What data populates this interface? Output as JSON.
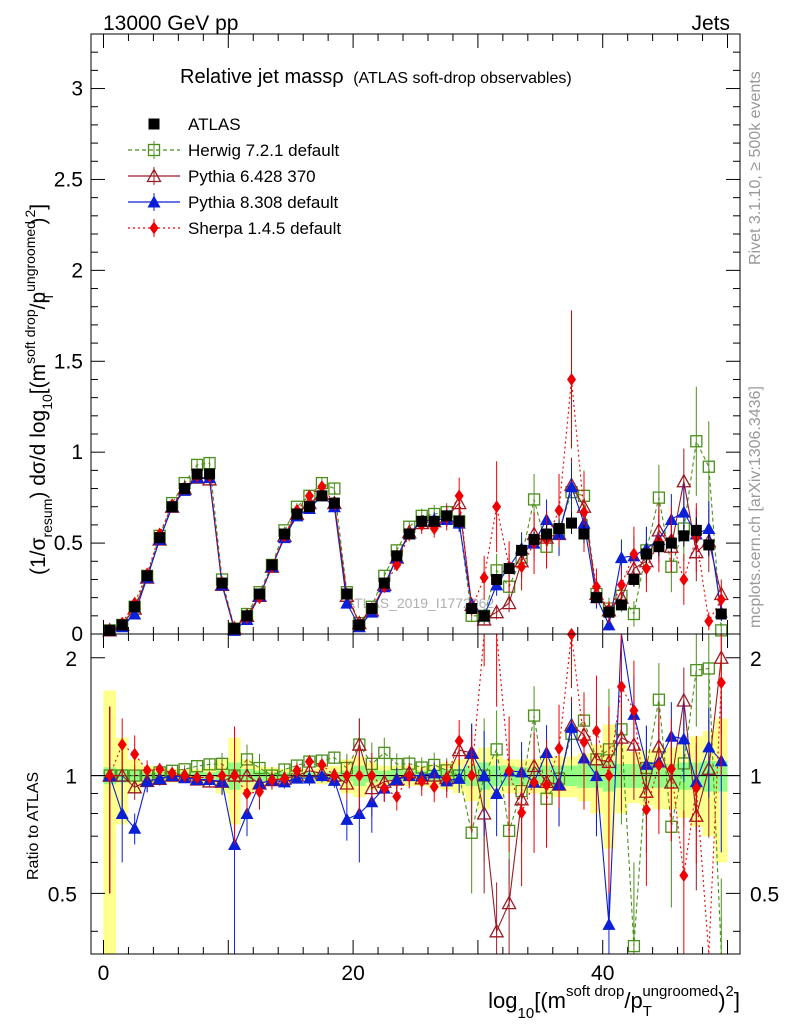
{
  "header": {
    "left": "13000 GeV pp",
    "right": "Jets"
  },
  "side_text": {
    "rivet": "Rivet 3.1.10, ≥ 500k events",
    "mcplots": "mcplots.cern.ch [arXiv:1306.3436]"
  },
  "chart_data": [
    {
      "type": "line",
      "title": "Relative jet massρ",
      "subtitle": "(ATLAS soft-drop observables)",
      "watermark": "ATLAS_2019_I1772062",
      "ylabel": {
        "pre": "(1/σ",
        "sub1": "resum",
        "mid": ") dσ/d log",
        "sub2": "10",
        "post": "[(m",
        "sup1": "soft drop",
        "post2": "/p",
        "sup2": "ungroomed",
        "subT": "T",
        "post3": ")",
        "sup3": "2",
        "post4": "]"
      },
      "xlim": [
        -1,
        51
      ],
      "ylim": [
        0,
        3.3
      ],
      "yticks": [
        0,
        0.5,
        1,
        1.5,
        2,
        2.5,
        3
      ],
      "ytick_labels": [
        "0",
        "0.5",
        "1",
        "1.5",
        "2",
        "2.5",
        "3"
      ],
      "x": [
        0.5,
        1.5,
        2.5,
        3.5,
        4.5,
        5.5,
        6.5,
        7.5,
        8.5,
        9.5,
        10.5,
        11.5,
        12.5,
        13.5,
        14.5,
        15.5,
        16.5,
        17.5,
        18.5,
        19.5,
        20.5,
        21.5,
        22.5,
        23.5,
        24.5,
        25.5,
        26.5,
        27.5,
        28.5,
        29.5,
        30.5,
        31.5,
        32.5,
        33.5,
        34.5,
        35.5,
        36.5,
        37.5,
        38.5,
        39.5,
        40.5,
        41.5,
        42.5,
        43.5,
        44.5,
        45.5,
        46.5,
        47.5,
        48.5,
        49.5
      ],
      "series": [
        {
          "name": "ATLAS",
          "color": "#000000",
          "marker": "square-filled",
          "dash": "",
          "values": [
            0.02,
            0.05,
            0.15,
            0.32,
            0.53,
            0.7,
            0.8,
            0.88,
            0.88,
            0.28,
            0.03,
            0.1,
            0.22,
            0.38,
            0.55,
            0.66,
            0.7,
            0.76,
            0.72,
            0.22,
            0.05,
            0.14,
            0.28,
            0.43,
            0.55,
            0.62,
            0.62,
            0.65,
            0.62,
            0.14,
            0.1,
            0.3,
            0.36,
            0.46,
            0.52,
            0.55,
            0.58,
            0.61,
            0.55,
            0.2,
            0.12,
            0.16,
            0.3,
            0.44,
            0.48,
            0.5,
            0.54,
            0.57,
            0.49,
            0.11
          ],
          "errors": [
            0.01,
            0.01,
            0.02,
            0.02,
            0.02,
            0.02,
            0.02,
            0.03,
            0.03,
            0.02,
            0.01,
            0.01,
            0.02,
            0.02,
            0.02,
            0.02,
            0.02,
            0.03,
            0.03,
            0.02,
            0.01,
            0.02,
            0.02,
            0.02,
            0.03,
            0.03,
            0.03,
            0.03,
            0.04,
            0.02,
            0.02,
            0.03,
            0.03,
            0.04,
            0.04,
            0.05,
            0.05,
            0.06,
            0.05,
            0.03,
            0.02,
            0.03,
            0.04,
            0.05,
            0.05,
            0.05,
            0.06,
            0.07,
            0.06,
            0.02
          ]
        },
        {
          "name": "Herwig 7.2.1 default",
          "color": "#4b8f1b",
          "marker": "square-open",
          "dash": "4,3",
          "values": [
            0.02,
            0.05,
            0.15,
            0.32,
            0.54,
            0.72,
            0.83,
            0.93,
            0.94,
            0.3,
            0.03,
            0.11,
            0.23,
            0.38,
            0.57,
            0.7,
            0.76,
            0.83,
            0.8,
            0.23,
            0.06,
            0.15,
            0.32,
            0.46,
            0.59,
            0.65,
            0.66,
            0.67,
            0.62,
            0.1,
            0.1,
            0.35,
            0.26,
            0.42,
            0.74,
            0.48,
            0.57,
            0.78,
            0.76,
            0.22,
            0.14,
            0.21,
            0.11,
            0.46,
            0.75,
            0.37,
            0.58,
            1.06,
            0.92,
            0.02
          ],
          "errors": [
            0.01,
            0.01,
            0.01,
            0.02,
            0.02,
            0.02,
            0.02,
            0.03,
            0.03,
            0.02,
            0.01,
            0.01,
            0.02,
            0.02,
            0.02,
            0.02,
            0.03,
            0.03,
            0.03,
            0.02,
            0.01,
            0.02,
            0.03,
            0.03,
            0.03,
            0.04,
            0.05,
            0.05,
            0.05,
            0.03,
            0.04,
            0.09,
            0.07,
            0.11,
            0.14,
            0.12,
            0.13,
            0.15,
            0.14,
            0.08,
            0.06,
            0.09,
            0.07,
            0.13,
            0.18,
            0.14,
            0.18,
            0.3,
            0.25,
            0.04
          ]
        },
        {
          "name": "Pythia 6.428 370",
          "color": "#9a1a24",
          "marker": "triangle-open",
          "dash": "",
          "values": [
            0.02,
            0.05,
            0.14,
            0.31,
            0.52,
            0.7,
            0.8,
            0.86,
            0.85,
            0.27,
            0.03,
            0.1,
            0.21,
            0.37,
            0.54,
            0.66,
            0.72,
            0.77,
            0.72,
            0.21,
            0.06,
            0.13,
            0.27,
            0.42,
            0.56,
            0.61,
            0.62,
            0.64,
            0.72,
            0.16,
            0.08,
            0.12,
            0.17,
            0.4,
            0.55,
            0.53,
            0.55,
            0.82,
            0.7,
            0.22,
            0.13,
            0.2,
            0.36,
            0.4,
            0.57,
            0.48,
            0.84,
            0.45,
            0.51,
            0.22
          ],
          "errors": [
            0.01,
            0.01,
            0.01,
            0.02,
            0.02,
            0.02,
            0.02,
            0.03,
            0.03,
            0.02,
            0.01,
            0.01,
            0.01,
            0.02,
            0.02,
            0.02,
            0.03,
            0.03,
            0.03,
            0.02,
            0.01,
            0.02,
            0.02,
            0.03,
            0.03,
            0.04,
            0.04,
            0.05,
            0.06,
            0.03,
            0.03,
            0.04,
            0.05,
            0.09,
            0.12,
            0.11,
            0.12,
            0.15,
            0.14,
            0.07,
            0.05,
            0.07,
            0.1,
            0.12,
            0.15,
            0.14,
            0.18,
            0.16,
            0.17,
            0.08
          ]
        },
        {
          "name": "Pythia 8.308 default",
          "color": "#0a1fd6",
          "marker": "triangle-filled",
          "dash": "",
          "values": [
            0.02,
            0.04,
            0.11,
            0.31,
            0.52,
            0.7,
            0.79,
            0.86,
            0.86,
            0.27,
            0.02,
            0.08,
            0.21,
            0.37,
            0.53,
            0.65,
            0.69,
            0.76,
            0.7,
            0.17,
            0.04,
            0.12,
            0.26,
            0.42,
            0.55,
            0.62,
            0.63,
            0.63,
            0.61,
            0.16,
            0.1,
            0.27,
            0.37,
            0.47,
            0.5,
            0.63,
            0.55,
            0.81,
            0.61,
            0.2,
            0.05,
            0.42,
            0.43,
            0.47,
            0.52,
            0.63,
            0.67,
            0.55,
            0.58,
            0.12
          ],
          "errors": [
            0.01,
            0.01,
            0.01,
            0.02,
            0.02,
            0.02,
            0.02,
            0.03,
            0.03,
            0.02,
            0.01,
            0.01,
            0.01,
            0.02,
            0.02,
            0.02,
            0.03,
            0.03,
            0.03,
            0.02,
            0.01,
            0.02,
            0.02,
            0.03,
            0.03,
            0.03,
            0.04,
            0.04,
            0.05,
            0.03,
            0.03,
            0.06,
            0.07,
            0.09,
            0.1,
            0.11,
            0.12,
            0.13,
            0.12,
            0.06,
            0.03,
            0.1,
            0.11,
            0.12,
            0.13,
            0.14,
            0.15,
            0.14,
            0.15,
            0.05
          ]
        },
        {
          "name": "Sherpa 1.4.5 default",
          "color": "#ee0000",
          "marker": "diamond-filled",
          "dash": "2,3",
          "values": [
            0.02,
            0.06,
            0.17,
            0.33,
            0.55,
            0.71,
            0.8,
            0.87,
            0.87,
            0.28,
            0.03,
            0.09,
            0.2,
            0.37,
            0.54,
            0.68,
            0.76,
            0.81,
            0.72,
            0.22,
            0.05,
            0.14,
            0.26,
            0.38,
            0.55,
            0.6,
            0.58,
            0.64,
            0.76,
            0.14,
            0.31,
            0.7,
            0.37,
            0.37,
            0.5,
            0.52,
            0.68,
            1.4,
            0.67,
            0.26,
            0.12,
            0.27,
            0.44,
            0.36,
            0.51,
            0.52,
            0.3,
            0.53,
            0.07,
            0.19
          ],
          "errors": [
            0.01,
            0.01,
            0.02,
            0.02,
            0.02,
            0.02,
            0.03,
            0.03,
            0.03,
            0.02,
            0.01,
            0.01,
            0.02,
            0.02,
            0.02,
            0.03,
            0.03,
            0.03,
            0.03,
            0.02,
            0.01,
            0.02,
            0.02,
            0.03,
            0.04,
            0.05,
            0.05,
            0.07,
            0.1,
            0.04,
            0.12,
            0.25,
            0.14,
            0.13,
            0.17,
            0.16,
            0.2,
            0.38,
            0.22,
            0.1,
            0.06,
            0.1,
            0.15,
            0.13,
            0.17,
            0.18,
            0.14,
            0.19,
            0.05,
            0.08
          ]
        }
      ]
    },
    {
      "type": "line",
      "ylabel": "Ratio to ATLAS",
      "xlabel": {
        "pre": "log",
        "sub": "10",
        "post": "[(m",
        "sup1": "soft drop",
        "post2": "/p",
        "subT": "T",
        "sup2": "ungroomed",
        "post3": ")",
        "sup3": "2",
        "post4": "]"
      },
      "xlim": [
        -1,
        51
      ],
      "ylim": [
        0.35,
        2.3
      ],
      "xticks": [
        0,
        20,
        40
      ],
      "xtick_labels": [
        "0",
        "20",
        "40"
      ],
      "yticks": [
        0.5,
        1,
        2
      ],
      "ytick_labels": [
        "0.5",
        "1",
        "2"
      ],
      "band_stat": [
        0.05,
        0.04,
        0.03,
        0.02,
        0.02,
        0.02,
        0.02,
        0.02,
        0.02,
        0.03,
        0.08,
        0.04,
        0.03,
        0.02,
        0.02,
        0.02,
        0.02,
        0.02,
        0.02,
        0.03,
        0.06,
        0.04,
        0.03,
        0.03,
        0.03,
        0.03,
        0.03,
        0.04,
        0.04,
        0.06,
        0.08,
        0.06,
        0.06,
        0.05,
        0.05,
        0.06,
        0.06,
        0.06,
        0.07,
        0.07,
        0.09,
        0.07,
        0.07,
        0.07,
        0.07,
        0.07,
        0.08,
        0.08,
        0.09,
        0.09
      ],
      "band_total": [
        0.65,
        0.25,
        0.1,
        0.06,
        0.05,
        0.04,
        0.04,
        0.04,
        0.05,
        0.1,
        0.25,
        0.1,
        0.06,
        0.05,
        0.04,
        0.04,
        0.04,
        0.05,
        0.06,
        0.1,
        0.12,
        0.08,
        0.06,
        0.06,
        0.06,
        0.06,
        0.07,
        0.08,
        0.1,
        0.14,
        0.18,
        0.12,
        0.1,
        0.1,
        0.1,
        0.11,
        0.12,
        0.12,
        0.14,
        0.2,
        0.35,
        0.2,
        0.15,
        0.16,
        0.18,
        0.18,
        0.22,
        0.26,
        0.3,
        0.4
      ]
    }
  ]
}
